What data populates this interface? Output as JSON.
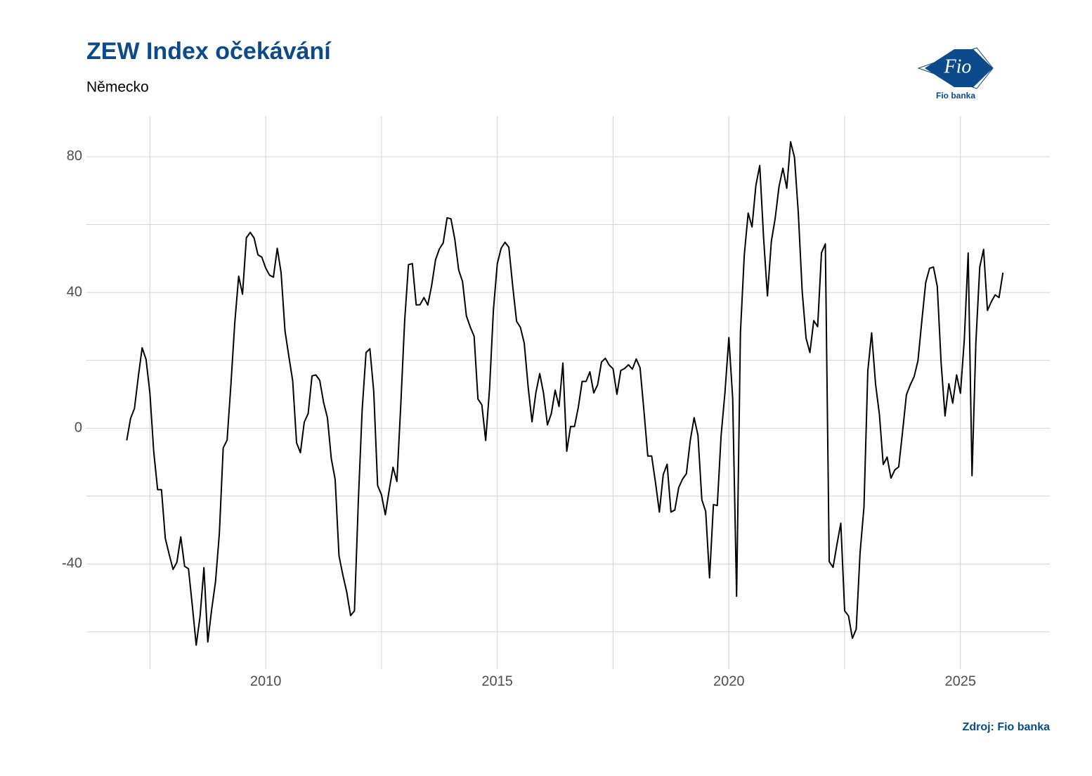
{
  "chart_data": {
    "type": "line",
    "title": "ZEW Index očekávání",
    "subtitle": "Německo",
    "source": "Zdroj: Fio banka",
    "logo": {
      "text": "Fio",
      "caption": "Fio banka"
    },
    "xlim": [
      2006.13,
      2026.93
    ],
    "ylim": [
      -71,
      92
    ],
    "xticks": [
      2010,
      2015,
      2020,
      2025
    ],
    "xticks_minor": [
      2007.5,
      2012.5,
      2017.5,
      2022.5
    ],
    "yticks": [
      -40,
      0,
      40,
      80
    ],
    "yticks_minor": [
      -60,
      -20,
      20,
      60
    ],
    "grid": true,
    "x": [
      2007.0,
      2007.083,
      2007.167,
      2007.25,
      2007.333,
      2007.417,
      2007.5,
      2007.583,
      2007.667,
      2007.75,
      2007.833,
      2007.917,
      2008.0,
      2008.083,
      2008.167,
      2008.25,
      2008.333,
      2008.417,
      2008.5,
      2008.583,
      2008.667,
      2008.75,
      2008.833,
      2008.917,
      2009.0,
      2009.083,
      2009.167,
      2009.25,
      2009.333,
      2009.417,
      2009.5,
      2009.583,
      2009.667,
      2009.75,
      2009.833,
      2009.917,
      2010.0,
      2010.083,
      2010.167,
      2010.25,
      2010.333,
      2010.417,
      2010.5,
      2010.583,
      2010.667,
      2010.75,
      2010.833,
      2010.917,
      2011.0,
      2011.083,
      2011.167,
      2011.25,
      2011.333,
      2011.417,
      2011.5,
      2011.583,
      2011.667,
      2011.75,
      2011.833,
      2011.917,
      2012.0,
      2012.083,
      2012.167,
      2012.25,
      2012.333,
      2012.417,
      2012.5,
      2012.583,
      2012.667,
      2012.75,
      2012.833,
      2012.917,
      2013.0,
      2013.083,
      2013.167,
      2013.25,
      2013.333,
      2013.417,
      2013.5,
      2013.583,
      2013.667,
      2013.75,
      2013.833,
      2013.917,
      2014.0,
      2014.083,
      2014.167,
      2014.25,
      2014.333,
      2014.417,
      2014.5,
      2014.583,
      2014.667,
      2014.75,
      2014.833,
      2014.917,
      2015.0,
      2015.083,
      2015.167,
      2015.25,
      2015.333,
      2015.417,
      2015.5,
      2015.583,
      2015.667,
      2015.75,
      2015.833,
      2015.917,
      2016.0,
      2016.083,
      2016.167,
      2016.25,
      2016.333,
      2016.417,
      2016.5,
      2016.583,
      2016.667,
      2016.75,
      2016.833,
      2016.917,
      2017.0,
      2017.083,
      2017.167,
      2017.25,
      2017.333,
      2017.417,
      2017.5,
      2017.583,
      2017.667,
      2017.75,
      2017.833,
      2017.917,
      2018.0,
      2018.083,
      2018.167,
      2018.25,
      2018.333,
      2018.417,
      2018.5,
      2018.583,
      2018.667,
      2018.75,
      2018.833,
      2018.917,
      2019.0,
      2019.083,
      2019.167,
      2019.25,
      2019.333,
      2019.417,
      2019.5,
      2019.583,
      2019.667,
      2019.75,
      2019.833,
      2019.917,
      2020.0,
      2020.083,
      2020.167,
      2020.25,
      2020.333,
      2020.417,
      2020.5,
      2020.583,
      2020.667,
      2020.75,
      2020.833,
      2020.917,
      2021.0,
      2021.083,
      2021.167,
      2021.25,
      2021.333,
      2021.417,
      2021.5,
      2021.583,
      2021.667,
      2021.75,
      2021.833,
      2021.917,
      2022.0,
      2022.083,
      2022.167,
      2022.25,
      2022.333,
      2022.417,
      2022.5,
      2022.583,
      2022.667,
      2022.75,
      2022.833,
      2022.917,
      2023.0,
      2023.083,
      2023.167,
      2023.25,
      2023.333,
      2023.417,
      2023.5,
      2023.583,
      2023.667,
      2023.75,
      2023.833,
      2023.917,
      2024.0,
      2024.083,
      2024.167,
      2024.25,
      2024.333,
      2024.417,
      2024.5,
      2024.583,
      2024.667,
      2024.75,
      2024.833,
      2024.917,
      2025.0,
      2025.083,
      2025.167,
      2025.25,
      2025.333,
      2025.417,
      2025.5,
      2025.583,
      2025.667,
      2025.75,
      2025.833,
      2025.917
    ],
    "series": [
      {
        "color": "#000000",
        "values": [
          -3.6,
          2.9,
          5.8,
          15.2,
          23.7,
          20.3,
          10.4,
          -6.9,
          -18.1,
          -18.1,
          -32.5,
          -37.2,
          -41.6,
          -39.5,
          -32.0,
          -40.7,
          -41.4,
          -52.4,
          -63.9,
          -55.5,
          -41.1,
          -63.0,
          -53.5,
          -45.2,
          -31.0,
          -5.8,
          -3.5,
          13.0,
          31.1,
          44.8,
          39.5,
          56.1,
          57.7,
          56.0,
          51.1,
          50.4,
          47.2,
          45.1,
          44.5,
          53.0,
          45.8,
          28.7,
          21.2,
          14.0,
          -4.3,
          -7.2,
          1.8,
          4.3,
          15.4,
          15.7,
          14.1,
          7.6,
          3.1,
          -9.0,
          -15.1,
          -37.6,
          -43.3,
          -48.3,
          -55.2,
          -53.8,
          -21.6,
          5.4,
          22.3,
          23.4,
          10.8,
          -16.9,
          -19.6,
          -25.5,
          -18.2,
          -11.5,
          -15.7,
          6.9,
          31.5,
          48.2,
          48.5,
          36.3,
          36.4,
          38.5,
          36.3,
          42.0,
          49.6,
          52.8,
          54.6,
          62.0,
          61.7,
          55.7,
          46.6,
          43.2,
          33.1,
          29.8,
          27.1,
          8.6,
          6.9,
          -3.6,
          11.5,
          34.9,
          48.4,
          53.0,
          54.8,
          53.3,
          41.9,
          31.5,
          29.7,
          25.0,
          12.1,
          1.9,
          10.4,
          16.1,
          10.2,
          1.0,
          4.3,
          11.2,
          6.4,
          19.2,
          -6.8,
          0.5,
          0.5,
          6.2,
          13.8,
          13.8,
          16.6,
          10.4,
          12.8,
          19.5,
          20.6,
          18.6,
          17.5,
          10.0,
          17.0,
          17.6,
          18.7,
          17.4,
          20.4,
          17.8,
          5.1,
          -8.2,
          -8.2,
          -16.1,
          -24.7,
          -13.7,
          -10.6,
          -24.7,
          -24.1,
          -17.5,
          -15.0,
          -13.4,
          -3.6,
          3.1,
          -2.1,
          -21.1,
          -24.5,
          -44.1,
          -22.5,
          -22.8,
          -2.1,
          10.7,
          26.7,
          8.7,
          -49.5,
          28.2,
          51.0,
          63.4,
          59.3,
          71.5,
          77.4,
          56.1,
          39.0,
          55.0,
          61.8,
          71.2,
          76.6,
          70.7,
          84.4,
          79.8,
          63.3,
          40.4,
          26.5,
          22.3,
          31.7,
          29.9,
          51.7,
          54.3,
          -39.3,
          -41.0,
          -34.3,
          -28.0,
          -53.8,
          -55.3,
          -61.9,
          -59.2,
          -36.7,
          -23.3,
          16.9,
          28.1,
          13.0,
          4.1,
          -10.7,
          -8.5,
          -14.7,
          -12.3,
          -11.4,
          -1.1,
          9.8,
          12.8,
          15.2,
          19.9,
          31.7,
          42.9,
          47.1,
          47.5,
          41.8,
          19.2,
          3.6,
          13.1,
          7.4,
          15.7,
          10.3,
          26.0,
          51.6,
          -14.0,
          25.2,
          47.5,
          52.7,
          34.7,
          37.3,
          39.3,
          38.5,
          45.8
        ]
      }
    ]
  }
}
